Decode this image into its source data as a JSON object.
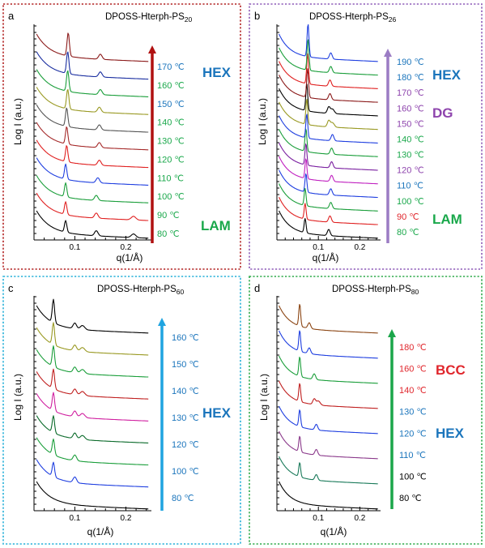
{
  "colors": {
    "frame_a": "#b22222",
    "frame_b": "#8e5cb8",
    "frame_c": "#26b0d9",
    "frame_d": "#2eaa4a",
    "arrow_a": "#b01010",
    "arrow_b": "#9b7cc4",
    "arrow_c": "#1fa4e0",
    "arrow_d": "#1ba64a",
    "lam": "#1aa84b",
    "hex": "#1b75bc",
    "dg": "#8e44ad",
    "bcc": "#e0262c"
  },
  "chart_data": [
    {
      "panel": "a",
      "type": "line",
      "title_main": "DPOSS-Hterph-PS",
      "title_sub": "20",
      "xlabel": "q(1/Å)",
      "ylabel": "Log I (a.u.)",
      "xlim": [
        0.02,
        0.25
      ],
      "xticks": [
        "0.1",
        "0.2"
      ],
      "xtick_values": [
        0.1,
        0.2
      ],
      "phase_labels": [
        {
          "text": "HEX",
          "color": "#1b75bc"
        },
        {
          "text": "LAM",
          "color": "#1aa84b"
        }
      ],
      "series": [
        {
          "name": "80 ℃",
          "label_color": "#1aa84b",
          "color": "#000000",
          "peaks": [
            0.082,
            0.142,
            0.215
          ]
        },
        {
          "name": "90 ℃",
          "label_color": "#1aa84b",
          "color": "#e02020",
          "peaks": [
            0.082,
            0.142,
            0.215
          ]
        },
        {
          "name": "100 ℃",
          "label_color": "#1aa84b",
          "color": "#1a9e3a",
          "peaks": [
            0.082,
            0.142
          ]
        },
        {
          "name": "110 ℃",
          "label_color": "#1aa84b",
          "color": "#1f3fe0",
          "peaks": [
            0.082,
            0.145
          ]
        },
        {
          "name": "120 ℃",
          "label_color": "#1aa84b",
          "color": "#e02020",
          "peaks": [
            0.084,
            0.148
          ]
        },
        {
          "name": "130 ℃",
          "label_color": "#1aa84b",
          "color": "#a52a2a",
          "peaks": [
            0.084,
            0.148
          ]
        },
        {
          "name": "140 ℃",
          "label_color": "#1aa84b",
          "color": "#555555",
          "peaks": [
            0.084,
            0.148
          ]
        },
        {
          "name": "150 ℃",
          "label_color": "#1b75bc",
          "color": "#999922",
          "peaks": [
            0.086,
            0.148
          ]
        },
        {
          "name": "160 ℃",
          "label_color": "#1aa84b",
          "color": "#1a9e3a",
          "peaks": [
            0.086,
            0.15
          ]
        },
        {
          "name": "170 ℃",
          "label_color": "#1b75bc",
          "color": "#1a2ea0",
          "peaks": [
            0.086,
            0.15
          ]
        },
        {
          "name": "",
          "label_color": "#1b75bc",
          "color": "#8b1a1a",
          "peaks": [
            0.087,
            0.15
          ]
        }
      ]
    },
    {
      "panel": "b",
      "type": "line",
      "title_main": "DPOSS-Hterph-PS",
      "title_sub": "26",
      "xlabel": "q(1/Å)",
      "ylabel": "Log I (a.u.)",
      "xlim": [
        0.0,
        0.25
      ],
      "xticks": [
        "0.1",
        "0.2"
      ],
      "xtick_values": [
        0.1,
        0.2
      ],
      "phase_labels": [
        {
          "text": "HEX",
          "color": "#1b75bc"
        },
        {
          "text": "DG",
          "color": "#8e44ad"
        },
        {
          "text": "LAM",
          "color": "#1aa84b"
        }
      ],
      "series": [
        {
          "name": "80 ℃",
          "label_color": "#1aa84b",
          "color": "#000000",
          "peaks": [
            0.068,
            0.125
          ]
        },
        {
          "name": "90 ℃",
          "label_color": "#e0262c",
          "color": "#e02020",
          "peaks": [
            0.068,
            0.128
          ]
        },
        {
          "name": "100 ℃",
          "label_color": "#1aa84b",
          "color": "#1a9e3a",
          "peaks": [
            0.068,
            0.13
          ]
        },
        {
          "name": "110 ℃",
          "label_color": "#1b75bc",
          "color": "#1f3fe0",
          "peaks": [
            0.07,
            0.13
          ]
        },
        {
          "name": "120 ℃",
          "label_color": "#8e44ad",
          "color": "#c020c0",
          "peaks": [
            0.07,
            0.132
          ]
        },
        {
          "name": "130 ℃",
          "label_color": "#1aa84b",
          "color": "#7a1fa0",
          "peaks": [
            0.07,
            0.132
          ]
        },
        {
          "name": "140 ℃",
          "label_color": "#1aa84b",
          "color": "#1a9e3a",
          "peaks": [
            0.07,
            0.132
          ]
        },
        {
          "name": "150 ℃",
          "label_color": "#8e44ad",
          "color": "#1f3fe0",
          "peaks": [
            0.072,
            0.134
          ]
        },
        {
          "name": "160 ℃",
          "label_color": "#8e44ad",
          "color": "#999922",
          "peaks": [
            0.072,
            0.125,
            0.134
          ]
        },
        {
          "name": "170 ℃",
          "label_color": "#8e44ad",
          "color": "#000000",
          "peaks": [
            0.072,
            0.125,
            0.134
          ]
        },
        {
          "name": "",
          "label_color": "#8e44ad",
          "color": "#8b1a1a",
          "peaks": [
            0.074,
            0.128
          ]
        },
        {
          "name": "180 ℃",
          "label_color": "#1b75bc",
          "color": "#e02020",
          "peaks": [
            0.074,
            0.128
          ]
        },
        {
          "name": "190 ℃",
          "label_color": "#1b75bc",
          "color": "#1a9e3a",
          "peaks": [
            0.075,
            0.13
          ]
        },
        {
          "name": "",
          "label_color": "#1b75bc",
          "color": "#1f3fe0",
          "peaks": [
            0.075,
            0.13
          ]
        }
      ]
    },
    {
      "panel": "c",
      "type": "line",
      "title_main": "DPOSS-Hterph-PS",
      "title_sub": "60",
      "xlabel": "q(1/Å)",
      "ylabel": "Log I (a.u.)",
      "xlim": [
        0.02,
        0.25
      ],
      "xticks": [
        "0.1",
        "0.2"
      ],
      "xtick_values": [
        0.1,
        0.2
      ],
      "phase_labels": [
        {
          "text": "HEX",
          "color": "#1b75bc"
        }
      ],
      "series": [
        {
          "name": "80 ℃",
          "label_color": "#1b75bc",
          "color": "#000000",
          "peaks": []
        },
        {
          "name": "100 ℃",
          "label_color": "#1b75bc",
          "color": "#1f3fe0",
          "peaks": [
            0.058,
            0.1
          ]
        },
        {
          "name": "120 ℃",
          "label_color": "#1b75bc",
          "color": "#1a9e3a",
          "peaks": [
            0.058,
            0.1
          ]
        },
        {
          "name": "",
          "label_color": "#1b75bc",
          "color": "#0a6a2a",
          "peaks": [
            0.058,
            0.1,
            0.115
          ]
        },
        {
          "name": "130 ℃",
          "label_color": "#1b75bc",
          "color": "#d020a0",
          "peaks": [
            0.058,
            0.1,
            0.115
          ]
        },
        {
          "name": "140 ℃",
          "label_color": "#1b75bc",
          "color": "#c02020",
          "peaks": [
            0.058,
            0.1,
            0.115
          ]
        },
        {
          "name": "",
          "label_color": "#1b75bc",
          "color": "#1a9e3a",
          "peaks": [
            0.058,
            0.1,
            0.115
          ]
        },
        {
          "name": "150 ℃",
          "label_color": "#1b75bc",
          "color": "#999922",
          "peaks": [
            0.058,
            0.1,
            0.115
          ]
        },
        {
          "name": "160 ℃",
          "label_color": "#1b75bc",
          "color": "#000000",
          "peaks": [
            0.058,
            0.1,
            0.115
          ]
        }
      ]
    },
    {
      "panel": "d",
      "type": "line",
      "title_main": "DPOSS-Hterph-PS",
      "title_sub": "80",
      "xlabel": "q(1/Å)",
      "ylabel": "Log I (a.u.)",
      "xlim": [
        0.0,
        0.25
      ],
      "xticks": [
        "0.1",
        "0.2"
      ],
      "xtick_values": [
        0.1,
        0.2
      ],
      "phase_labels": [
        {
          "text": "BCC",
          "color": "#e0262c"
        },
        {
          "text": "HEX",
          "color": "#1b75bc"
        }
      ],
      "series": [
        {
          "name": "80 ℃",
          "label_color": "#000000",
          "color": "#000000",
          "peaks": []
        },
        {
          "name": "100 ℃",
          "label_color": "#000000",
          "color": "#1a7a5a",
          "peaks": [
            0.055,
            0.095
          ]
        },
        {
          "name": "110 ℃",
          "label_color": "#1b75bc",
          "color": "#8b3a8b",
          "peaks": [
            0.055,
            0.095
          ]
        },
        {
          "name": "120 ℃",
          "label_color": "#1b75bc",
          "color": "#1f3fe0",
          "peaks": [
            0.055,
            0.095
          ]
        },
        {
          "name": "130 ℃",
          "label_color": "#1b75bc",
          "color": "#c02020",
          "peaks": [
            0.055,
            0.09,
            0.1
          ]
        },
        {
          "name": "140 ℃",
          "label_color": "#e0262c",
          "color": "#1a9e3a",
          "peaks": [
            0.055,
            0.09
          ]
        },
        {
          "name": "160 ℃",
          "label_color": "#e0262c",
          "color": "#1f3fe0",
          "peaks": [
            0.055,
            0.078
          ]
        },
        {
          "name": "180 ℃",
          "label_color": "#e0262c",
          "color": "#8b4513",
          "peaks": [
            0.055,
            0.078
          ]
        }
      ]
    }
  ]
}
